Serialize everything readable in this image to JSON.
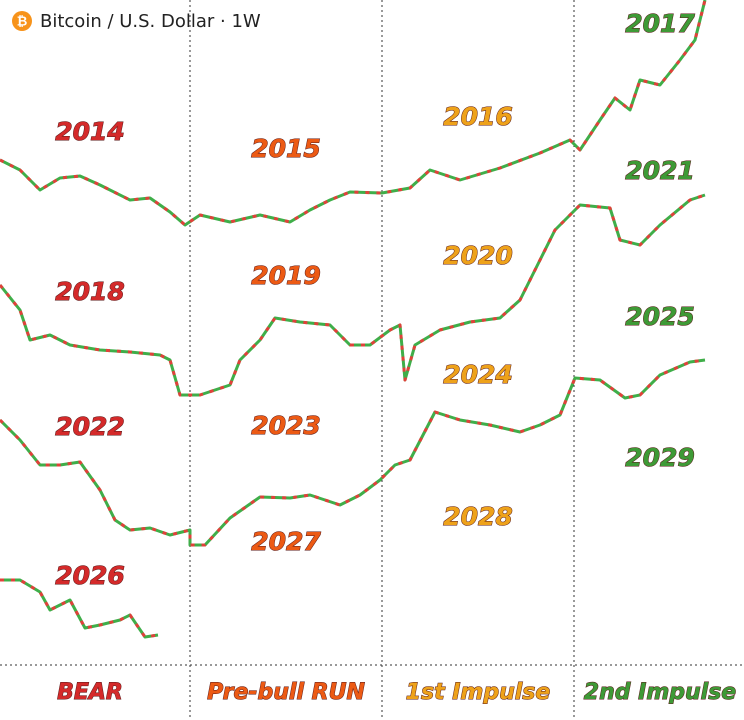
{
  "header": {
    "symbol": "₿",
    "title": "Bitcoin / U.S. Dollar · 1W"
  },
  "phases": [
    {
      "name": "BEAR",
      "color": "#d42a2a",
      "years": [
        "2014",
        "2018",
        "2022",
        "2026"
      ]
    },
    {
      "name": "Pre-bull RUN",
      "color": "#ec5a14",
      "years": [
        "2015",
        "2019",
        "2023",
        "2027"
      ]
    },
    {
      "name": "1st Impulse",
      "color": "#eea21a",
      "years": [
        "2016",
        "2020",
        "2024",
        "2028"
      ]
    },
    {
      "name": "2nd Impulse",
      "color": "#3e9a36",
      "years": [
        "2017",
        "2021",
        "2025",
        "2029"
      ]
    }
  ]
}
